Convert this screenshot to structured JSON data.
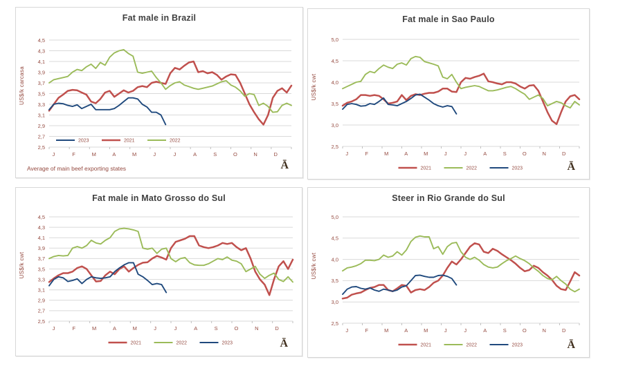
{
  "logo_glyph": "Ā",
  "colors": {
    "red": "#C0504D",
    "green": "#9BBB59",
    "blue": "#1F497D",
    "grid": "#d9d9d9",
    "axis_text": "#954b41",
    "title_text": "#3f3f3f",
    "panel_border": "#d7d7d7",
    "logo": "#41301f",
    "background": "#ffffff"
  },
  "chart_data": [
    {
      "type": "line",
      "title": "Fat male in Brazil",
      "ylabel": "US$/k carcasa",
      "footnote": "Average  of main beef exporting states",
      "ylim": [
        2.5,
        4.5
      ],
      "ystep": 0.2,
      "ytick_labels": [
        "2,5",
        "2,7",
        "2,9",
        "3,1",
        "3,3",
        "3,5",
        "3,7",
        "3,9",
        "4,1",
        "4,3",
        "4,5"
      ],
      "months": [
        "J",
        "F",
        "M",
        "A",
        "M",
        "J",
        "J",
        "A",
        "S",
        "O",
        "N",
        "D"
      ],
      "legend": {
        "position": "inside",
        "order": [
          "2023",
          "2021",
          "2022"
        ]
      },
      "series": [
        {
          "name": "2021",
          "color": "red",
          "values": [
            3.18,
            3.3,
            3.42,
            3.48,
            3.55,
            3.57,
            3.56,
            3.52,
            3.48,
            3.35,
            3.32,
            3.4,
            3.52,
            3.55,
            3.44,
            3.5,
            3.56,
            3.52,
            3.55,
            3.62,
            3.64,
            3.62,
            3.7,
            3.72,
            3.7,
            3.68,
            3.88,
            3.98,
            3.95,
            4.02,
            4.08,
            4.1,
            3.9,
            3.92,
            3.88,
            3.9,
            3.85,
            3.76,
            3.82,
            3.86,
            3.85,
            3.7,
            3.5,
            3.3,
            3.15,
            3.02,
            2.92,
            3.1,
            3.42,
            3.55,
            3.6,
            3.52,
            3.65
          ]
        },
        {
          "name": "2022",
          "color": "green",
          "values": [
            3.7,
            3.76,
            3.78,
            3.8,
            3.82,
            3.9,
            3.95,
            3.93,
            4.0,
            4.05,
            3.97,
            4.08,
            4.03,
            4.18,
            4.26,
            4.3,
            4.32,
            4.25,
            4.2,
            3.9,
            3.88,
            3.9,
            3.92,
            3.8,
            3.7,
            3.58,
            3.65,
            3.7,
            3.72,
            3.66,
            3.63,
            3.6,
            3.58,
            3.6,
            3.62,
            3.64,
            3.68,
            3.72,
            3.74,
            3.66,
            3.62,
            3.55,
            3.45,
            3.5,
            3.48,
            3.28,
            3.32,
            3.26,
            3.15,
            3.16,
            3.28,
            3.32,
            3.28
          ]
        },
        {
          "name": "2023",
          "color": "blue",
          "values": [
            3.2,
            3.3,
            3.32,
            3.31,
            3.28,
            3.26,
            3.29,
            3.22,
            3.26,
            3.3,
            3.2,
            3.2,
            3.2,
            3.2,
            3.22,
            3.28,
            3.35,
            3.42,
            3.42,
            3.4,
            3.3,
            3.25,
            3.15,
            3.15,
            3.1,
            2.92
          ]
        }
      ]
    },
    {
      "type": "line",
      "title": "Fat male in Sao Paulo",
      "ylabel": "US$/k cwt",
      "ylim": [
        2.5,
        5.0
      ],
      "ystep": 0.5,
      "ytick_labels": [
        "2,5",
        "3,0",
        "3,5",
        "4,0",
        "4,5",
        "5,0"
      ],
      "months": [
        "J",
        "F",
        "M",
        "A",
        "M",
        "J",
        "J",
        "A",
        "S",
        "O",
        "N",
        "D"
      ],
      "legend": {
        "position": "below",
        "order": [
          "2021",
          "2022",
          "2023"
        ]
      },
      "series": [
        {
          "name": "2021",
          "color": "red",
          "values": [
            3.45,
            3.52,
            3.55,
            3.6,
            3.7,
            3.7,
            3.68,
            3.7,
            3.68,
            3.6,
            3.5,
            3.52,
            3.55,
            3.7,
            3.58,
            3.68,
            3.72,
            3.7,
            3.73,
            3.75,
            3.75,
            3.78,
            3.85,
            3.85,
            3.78,
            3.77,
            4.0,
            4.1,
            4.08,
            4.12,
            4.15,
            4.2,
            4.02,
            4.0,
            3.97,
            3.95,
            4.0,
            4.0,
            3.97,
            3.9,
            3.85,
            3.92,
            3.93,
            3.8,
            3.55,
            3.3,
            3.1,
            3.02,
            3.3,
            3.55,
            3.67,
            3.7,
            3.6
          ]
        },
        {
          "name": "2022",
          "color": "green",
          "values": [
            3.85,
            3.9,
            3.95,
            4.0,
            4.02,
            4.18,
            4.25,
            4.22,
            4.32,
            4.4,
            4.35,
            4.32,
            4.42,
            4.45,
            4.4,
            4.55,
            4.6,
            4.58,
            4.48,
            4.45,
            4.42,
            4.38,
            4.12,
            4.08,
            4.18,
            4.0,
            3.85,
            3.88,
            3.9,
            3.92,
            3.9,
            3.85,
            3.8,
            3.8,
            3.82,
            3.85,
            3.88,
            3.9,
            3.85,
            3.78,
            3.72,
            3.6,
            3.65,
            3.7,
            3.62,
            3.45,
            3.5,
            3.55,
            3.52,
            3.45,
            3.4,
            3.55,
            3.47
          ]
        },
        {
          "name": "2023",
          "color": "blue",
          "values": [
            3.37,
            3.48,
            3.5,
            3.48,
            3.44,
            3.45,
            3.5,
            3.48,
            3.55,
            3.63,
            3.48,
            3.47,
            3.45,
            3.5,
            3.55,
            3.62,
            3.7,
            3.72,
            3.65,
            3.58,
            3.5,
            3.45,
            3.42,
            3.45,
            3.43,
            3.26
          ]
        }
      ]
    },
    {
      "type": "line",
      "title": "Fat male in Mato Grosso do Sul",
      "ylabel": "US$/k cwt",
      "ylim": [
        2.5,
        4.5
      ],
      "ystep": 0.2,
      "ytick_labels": [
        "2,5",
        "2,7",
        "2,9",
        "3,1",
        "3,3",
        "3,5",
        "3,7",
        "3,9",
        "4,1",
        "4,3",
        "4,5"
      ],
      "months": [
        "J",
        "F",
        "M",
        "A",
        "M",
        "J",
        "J",
        "A",
        "S",
        "O",
        "N",
        "D"
      ],
      "legend": {
        "position": "below",
        "order": [
          "2021",
          "2022",
          "2023"
        ]
      },
      "series": [
        {
          "name": "2021",
          "color": "red",
          "values": [
            3.25,
            3.32,
            3.38,
            3.42,
            3.42,
            3.45,
            3.52,
            3.55,
            3.5,
            3.38,
            3.26,
            3.27,
            3.38,
            3.45,
            3.4,
            3.5,
            3.55,
            3.45,
            3.52,
            3.58,
            3.62,
            3.63,
            3.7,
            3.75,
            3.72,
            3.68,
            3.9,
            4.02,
            4.05,
            4.08,
            4.13,
            4.13,
            3.95,
            3.92,
            3.9,
            3.92,
            3.95,
            4.0,
            3.98,
            4.0,
            3.92,
            3.86,
            3.9,
            3.7,
            3.45,
            3.3,
            3.2,
            3.0,
            3.3,
            3.55,
            3.65,
            3.5,
            3.68
          ]
        },
        {
          "name": "2022",
          "color": "green",
          "values": [
            3.7,
            3.74,
            3.76,
            3.75,
            3.76,
            3.9,
            3.93,
            3.9,
            3.95,
            4.05,
            4.0,
            3.98,
            4.05,
            4.1,
            4.22,
            4.27,
            4.28,
            4.27,
            4.25,
            4.22,
            3.9,
            3.88,
            3.9,
            3.8,
            3.88,
            3.9,
            3.7,
            3.64,
            3.7,
            3.72,
            3.62,
            3.58,
            3.57,
            3.57,
            3.6,
            3.65,
            3.7,
            3.68,
            3.73,
            3.67,
            3.65,
            3.6,
            3.45,
            3.5,
            3.55,
            3.4,
            3.32,
            3.38,
            3.42,
            3.3,
            3.26,
            3.35,
            3.25
          ]
        },
        {
          "name": "2023",
          "color": "blue",
          "values": [
            3.18,
            3.3,
            3.35,
            3.33,
            3.26,
            3.28,
            3.31,
            3.22,
            3.3,
            3.35,
            3.33,
            3.32,
            3.33,
            3.35,
            3.45,
            3.52,
            3.58,
            3.62,
            3.62,
            3.4,
            3.35,
            3.28,
            3.2,
            3.22,
            3.2,
            3.05
          ]
        }
      ]
    },
    {
      "type": "line",
      "title": "Steer  in Rio Grande do Sul",
      "ylabel": "US$/k cwt",
      "ylim": [
        2.5,
        5.0
      ],
      "ystep": 0.5,
      "ytick_labels": [
        "2,5",
        "3,0",
        "3,5",
        "4,0",
        "4,5",
        "5,0"
      ],
      "months": [
        "J",
        "F",
        "M",
        "A",
        "M",
        "J",
        "J",
        "A",
        "S",
        "O",
        "N",
        "D"
      ],
      "legend": {
        "position": "below",
        "order": [
          "2021",
          "2022",
          "2023"
        ]
      },
      "series": [
        {
          "name": "2021",
          "color": "red",
          "values": [
            3.08,
            3.1,
            3.17,
            3.2,
            3.22,
            3.28,
            3.33,
            3.35,
            3.4,
            3.4,
            3.28,
            3.25,
            3.32,
            3.4,
            3.38,
            3.22,
            3.28,
            3.3,
            3.28,
            3.35,
            3.45,
            3.5,
            3.62,
            3.8,
            3.95,
            3.88,
            4.0,
            4.15,
            4.3,
            4.38,
            4.35,
            4.18,
            4.15,
            4.25,
            4.2,
            4.12,
            4.05,
            3.98,
            3.9,
            3.8,
            3.72,
            3.75,
            3.85,
            3.8,
            3.7,
            3.62,
            3.52,
            3.38,
            3.3,
            3.28,
            3.48,
            3.7,
            3.62
          ]
        },
        {
          "name": "2022",
          "color": "green",
          "values": [
            3.73,
            3.8,
            3.82,
            3.85,
            3.9,
            3.98,
            3.98,
            3.97,
            4.0,
            4.1,
            4.05,
            4.08,
            4.18,
            4.1,
            4.22,
            4.42,
            4.52,
            4.55,
            4.53,
            4.53,
            4.25,
            4.3,
            4.12,
            4.3,
            4.38,
            4.4,
            4.18,
            4.05,
            4.0,
            4.05,
            3.98,
            3.88,
            3.82,
            3.8,
            3.82,
            3.9,
            3.97,
            4.02,
            4.08,
            4.02,
            3.97,
            3.9,
            3.8,
            3.72,
            3.62,
            3.55,
            3.52,
            3.6,
            3.5,
            3.42,
            3.3,
            3.24,
            3.3
          ]
        },
        {
          "name": "2023",
          "color": "blue",
          "values": [
            3.18,
            3.3,
            3.35,
            3.36,
            3.32,
            3.3,
            3.33,
            3.28,
            3.25,
            3.3,
            3.28,
            3.25,
            3.28,
            3.35,
            3.38,
            3.5,
            3.62,
            3.63,
            3.6,
            3.58,
            3.58,
            3.62,
            3.63,
            3.6,
            3.55,
            3.4
          ]
        }
      ]
    }
  ]
}
